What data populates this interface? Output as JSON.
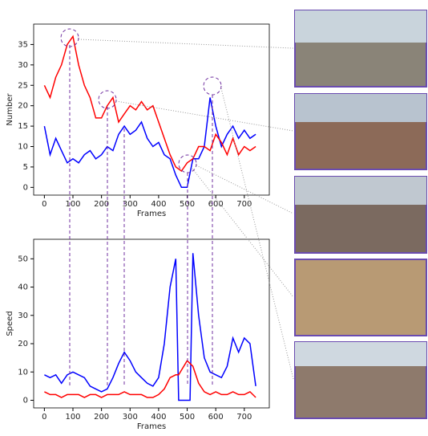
{
  "chart_data": [
    {
      "type": "line",
      "xlabel": "Frames",
      "ylabel": "Number",
      "x": [
        0,
        20,
        40,
        60,
        80,
        100,
        120,
        140,
        160,
        180,
        200,
        220,
        240,
        260,
        280,
        300,
        320,
        340,
        360,
        380,
        400,
        420,
        440,
        460,
        480,
        500,
        520,
        540,
        560,
        580,
        600,
        620,
        640,
        660,
        680,
        700,
        720,
        740
      ],
      "series": [
        {
          "color": "#ff0000",
          "values": [
            25,
            22,
            27,
            30,
            35,
            37,
            30,
            25,
            22,
            17,
            17,
            20,
            22,
            16,
            18,
            20,
            19,
            21,
            19,
            20,
            16,
            12,
            8,
            5,
            4,
            6,
            7,
            10,
            10,
            9,
            13,
            11,
            8,
            12,
            8,
            10,
            9,
            10
          ]
        },
        {
          "color": "#0000ff",
          "values": [
            15,
            8,
            12,
            9,
            6,
            7,
            6,
            8,
            9,
            7,
            8,
            10,
            9,
            13,
            15,
            13,
            14,
            16,
            12,
            10,
            11,
            8,
            7,
            3,
            0,
            0,
            7,
            7,
            10,
            22,
            15,
            10,
            13,
            15,
            12,
            14,
            12,
            13
          ]
        }
      ],
      "xlim": [
        -37.5,
        787.5
      ],
      "ylim": [
        -1.9,
        40
      ],
      "xticks": [
        0,
        100,
        200,
        300,
        400,
        500,
        600,
        700
      ],
      "yticks": [
        0,
        5,
        10,
        15,
        20,
        25,
        30,
        35
      ]
    },
    {
      "type": "line",
      "xlabel": "Frames",
      "ylabel": "Speed",
      "x": [
        0,
        20,
        40,
        60,
        80,
        100,
        120,
        140,
        160,
        180,
        200,
        220,
        240,
        260,
        280,
        300,
        320,
        340,
        360,
        380,
        400,
        420,
        440,
        460,
        470,
        500,
        510,
        520,
        540,
        560,
        580,
        600,
        620,
        640,
        660,
        680,
        700,
        720,
        740
      ],
      "series": [
        {
          "color": "#ff0000",
          "values": [
            3,
            2,
            2,
            1,
            2,
            2,
            2,
            1,
            2,
            2,
            1,
            2,
            2,
            2,
            3,
            2,
            2,
            2,
            1,
            1,
            2,
            4,
            8,
            9,
            9,
            14,
            13,
            12,
            6,
            3,
            2,
            3,
            2,
            2,
            3,
            2,
            2,
            3,
            1
          ]
        },
        {
          "color": "#0000ff",
          "values": [
            9,
            8,
            9,
            6,
            9,
            10,
            9,
            8,
            5,
            4,
            3,
            4,
            8,
            13,
            17,
            14,
            10,
            8,
            6,
            5,
            8,
            20,
            40,
            50,
            0,
            0,
            0,
            52,
            30,
            15,
            10,
            9,
            8,
            12,
            22,
            17,
            22,
            20,
            5
          ]
        }
      ],
      "xlim": [
        -37.5,
        787.5
      ],
      "ylim": [
        -2.7,
        56.9
      ],
      "xticks": [
        0,
        100,
        200,
        300,
        400,
        500,
        600,
        700
      ],
      "yticks": [
        0,
        10,
        20,
        30,
        40,
        50
      ]
    }
  ]
}
